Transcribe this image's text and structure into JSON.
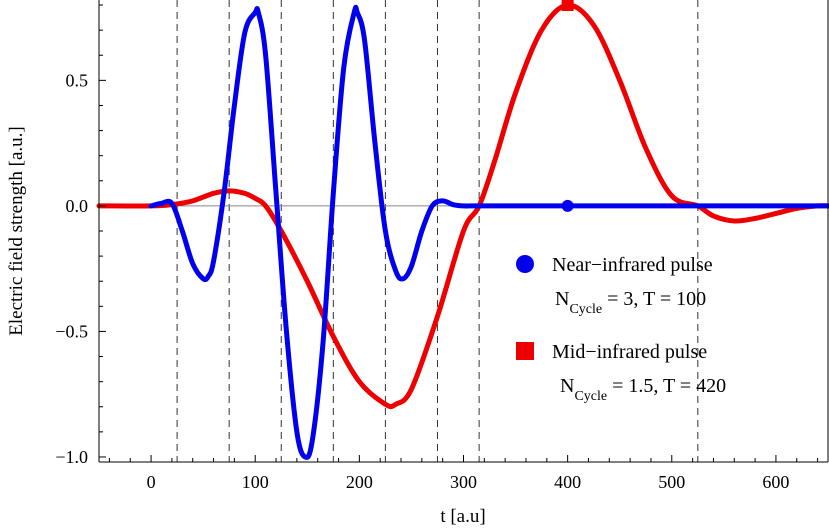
{
  "chart_data": {
    "type": "line",
    "xlabel": "t  [a.u]",
    "ylabel": "Electric   field   strength   [a.u.]",
    "xlim": [
      -50,
      650
    ],
    "ylim": [
      -1.02,
      0.82
    ],
    "x_ticks": [
      0,
      100,
      200,
      300,
      400,
      500,
      600
    ],
    "y_ticks": [
      -1.0,
      -0.5,
      0.0,
      0.5
    ],
    "x_tick_labels": [
      "0",
      "100",
      "200",
      "300",
      "400",
      "500",
      "600"
    ],
    "y_tick_labels": [
      "−1.0",
      "−0.5",
      "0.0",
      "0.5"
    ],
    "grid": false,
    "vertical_dashed_lines_x": [
      25,
      75,
      125,
      175,
      225,
      275,
      315,
      525
    ],
    "legend_position": "right",
    "series": [
      {
        "name": "Near−infrared pulse",
        "subtitle_prefix": "N",
        "subtitle_sub": "Cycle",
        "subtitle_suffix": " = 3, T = 100",
        "color": "#0000ee",
        "marker": "circle",
        "marker_point": [
          400,
          0.0
        ],
        "x": [
          0,
          10,
          20,
          30,
          40,
          50,
          55,
          60,
          70,
          80,
          90,
          100,
          103,
          110,
          120,
          130,
          140,
          148,
          155,
          165,
          175,
          185,
          195,
          198,
          205,
          215,
          225,
          235,
          242,
          250,
          260,
          270,
          280,
          290,
          300,
          310,
          320,
          400,
          500,
          650
        ],
        "y": [
          0.0,
          0.01,
          0.01,
          -0.1,
          -0.23,
          -0.29,
          -0.28,
          -0.22,
          0.05,
          0.4,
          0.69,
          0.77,
          0.77,
          0.6,
          0.05,
          -0.5,
          -0.9,
          -1.0,
          -0.93,
          -0.55,
          0.05,
          0.55,
          0.77,
          0.77,
          0.66,
          0.25,
          -0.1,
          -0.26,
          -0.29,
          -0.24,
          -0.1,
          0.0,
          0.02,
          0.005,
          0.0,
          0.0,
          0.0,
          0.0,
          0.0,
          0.0
        ]
      },
      {
        "name": "Mid−infrared pulse",
        "subtitle_prefix": "N",
        "subtitle_sub": "Cycle",
        "subtitle_suffix": " = 1.5, T = 420",
        "color": "#ee0000",
        "marker": "square",
        "marker_point": [
          400,
          0.8
        ],
        "x": [
          -50,
          0,
          20,
          40,
          60,
          75,
          90,
          100,
          110,
          125,
          150,
          175,
          200,
          225,
          235,
          250,
          275,
          300,
          315,
          330,
          350,
          375,
          400,
          425,
          450,
          475,
          500,
          525,
          540,
          560,
          580,
          600,
          620,
          640,
          650
        ],
        "y": [
          0.0,
          0.0,
          0.005,
          0.02,
          0.05,
          0.06,
          0.05,
          0.03,
          0.0,
          -0.1,
          -0.3,
          -0.52,
          -0.7,
          -0.79,
          -0.79,
          -0.73,
          -0.44,
          -0.1,
          0.0,
          0.18,
          0.45,
          0.7,
          0.8,
          0.72,
          0.5,
          0.23,
          0.04,
          0.0,
          -0.04,
          -0.06,
          -0.05,
          -0.03,
          -0.01,
          0.0,
          0.0
        ]
      }
    ]
  }
}
